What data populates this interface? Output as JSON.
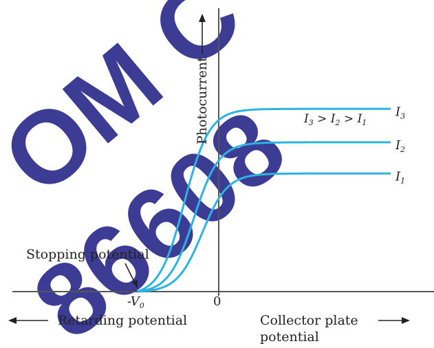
{
  "chart_data": {
    "type": "line",
    "ylabel": "Photocurrent",
    "x_label_left": "Retarding potential",
    "x_label_right_line1": "Collector plate",
    "x_label_right_line2": "potential",
    "origin_label": "0",
    "stopping_voltage_label": "-V",
    "stopping_voltage_subscript": "0",
    "annotation": "Stopping potential",
    "legend_text": "I3 > I2 > I1",
    "legend": {
      "i": "I",
      "s3": "3",
      "s2": "2",
      "s1": "1",
      "gt": " > "
    },
    "series": [
      {
        "name": "I",
        "sub": "3",
        "saturation": 0.82,
        "color": "#2bb3e3"
      },
      {
        "name": "I",
        "sub": "2",
        "saturation": 0.67,
        "color": "#2bb3e3"
      },
      {
        "name": "I",
        "sub": "1",
        "saturation": 0.53,
        "color": "#2bb3e3"
      }
    ],
    "stopping_voltage_x": -1.0,
    "grid": false
  },
  "watermark": {
    "line1": "OM C",
    "line2": "86608"
  }
}
